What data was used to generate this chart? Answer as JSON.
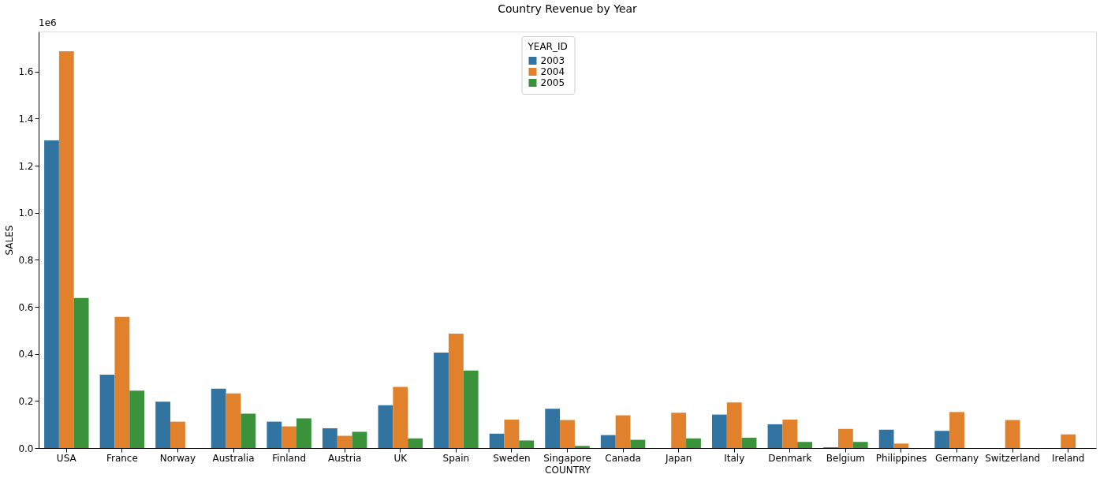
{
  "chart_data": {
    "type": "bar",
    "title": "Country Revenue by Year",
    "xlabel": "COUNTRY",
    "ylabel": "SALES",
    "legend_title": "YEAR_ID",
    "legend": "top",
    "categories": [
      "USA",
      "France",
      "Norway",
      "Australia",
      "Finland",
      "Austria",
      "UK",
      "Spain",
      "Sweden",
      "Singapore",
      "Canada",
      "Japan",
      "Italy",
      "Denmark",
      "Belgium",
      "Philippines",
      "Germany",
      "Switzerland",
      "Ireland"
    ],
    "series": [
      {
        "name": "2003",
        "color": "#3274a1",
        "values": [
          1.307,
          0.312,
          0.197,
          0.252,
          0.112,
          0.084,
          0.182,
          0.406,
          0.061,
          0.167,
          0.055,
          null,
          0.142,
          0.101,
          0.003,
          0.078,
          0.073,
          null,
          null
        ]
      },
      {
        "name": "2004",
        "color": "#e1812c",
        "values": [
          1.686,
          0.557,
          0.112,
          0.232,
          0.092,
          0.052,
          0.26,
          0.486,
          0.121,
          0.119,
          0.139,
          0.15,
          0.194,
          0.121,
          0.081,
          0.019,
          0.153,
          0.119,
          0.058
        ]
      },
      {
        "name": "2005",
        "color": "#3a923a",
        "values": [
          0.638,
          0.244,
          null,
          0.146,
          0.126,
          0.069,
          0.041,
          0.329,
          0.032,
          0.009,
          0.035,
          0.041,
          0.044,
          0.026,
          0.026,
          null,
          null,
          null,
          null
        ]
      }
    ],
    "ylim": [
      0,
      1.77
    ],
    "yticks": [
      {
        "value": 0,
        "label": "0.0"
      },
      0.2,
      0.4,
      0.6,
      0.8,
      {
        "value": 1,
        "label": "1.0"
      },
      1.2,
      1.4,
      1.6
    ],
    "annotations": [
      "1e6"
    ],
    "grid": false
  }
}
